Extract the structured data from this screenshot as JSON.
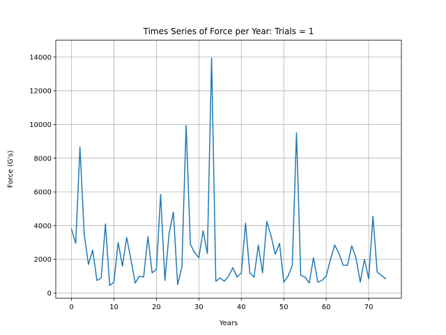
{
  "chart_data": {
    "type": "line",
    "title": "Times Series of Force per Year: Trials = 1",
    "xlabel": "Years",
    "ylabel": "Force (G's)",
    "xlim": [
      -3.7,
      77.7
    ],
    "ylim": [
      -300,
      15000
    ],
    "xticks": [
      0,
      10,
      20,
      30,
      40,
      50,
      60,
      70
    ],
    "yticks": [
      0,
      2000,
      4000,
      6000,
      8000,
      10000,
      12000,
      14000
    ],
    "grid": true,
    "series": [
      {
        "color": "#1f77b4",
        "x": [
          0,
          1,
          2,
          3,
          4,
          5,
          6,
          7,
          8,
          9,
          10,
          11,
          12,
          13,
          14,
          15,
          16,
          17,
          18,
          19,
          20,
          21,
          22,
          23,
          24,
          25,
          26,
          27,
          28,
          29,
          30,
          31,
          32,
          33,
          34,
          35,
          36,
          37,
          38,
          39,
          40,
          41,
          42,
          43,
          44,
          45,
          46,
          47,
          48,
          49,
          50,
          51,
          52,
          53,
          54,
          55,
          56,
          57,
          58,
          59,
          60,
          61,
          62,
          63,
          64,
          65,
          66,
          67,
          68,
          69,
          70,
          71,
          72,
          73,
          74
        ],
        "values": [
          3800,
          2950,
          8650,
          3500,
          1700,
          2550,
          750,
          900,
          4100,
          450,
          650,
          3000,
          1600,
          3300,
          2000,
          600,
          1000,
          950,
          3350,
          1200,
          1400,
          5850,
          750,
          3550,
          4800,
          500,
          1550,
          9950,
          2900,
          2400,
          2100,
          3700,
          2350,
          13950,
          700,
          900,
          700,
          1000,
          1500,
          950,
          1200,
          4150,
          1200,
          950,
          2850,
          1200,
          4250,
          3400,
          2300,
          2950,
          650,
          1000,
          1650,
          9500,
          1050,
          950,
          600,
          2100,
          650,
          750,
          1000,
          2000,
          2850,
          2350,
          1650,
          1650,
          2800,
          2100,
          650,
          2000,
          850,
          4550,
          1250,
          1050,
          850
        ]
      }
    ]
  }
}
